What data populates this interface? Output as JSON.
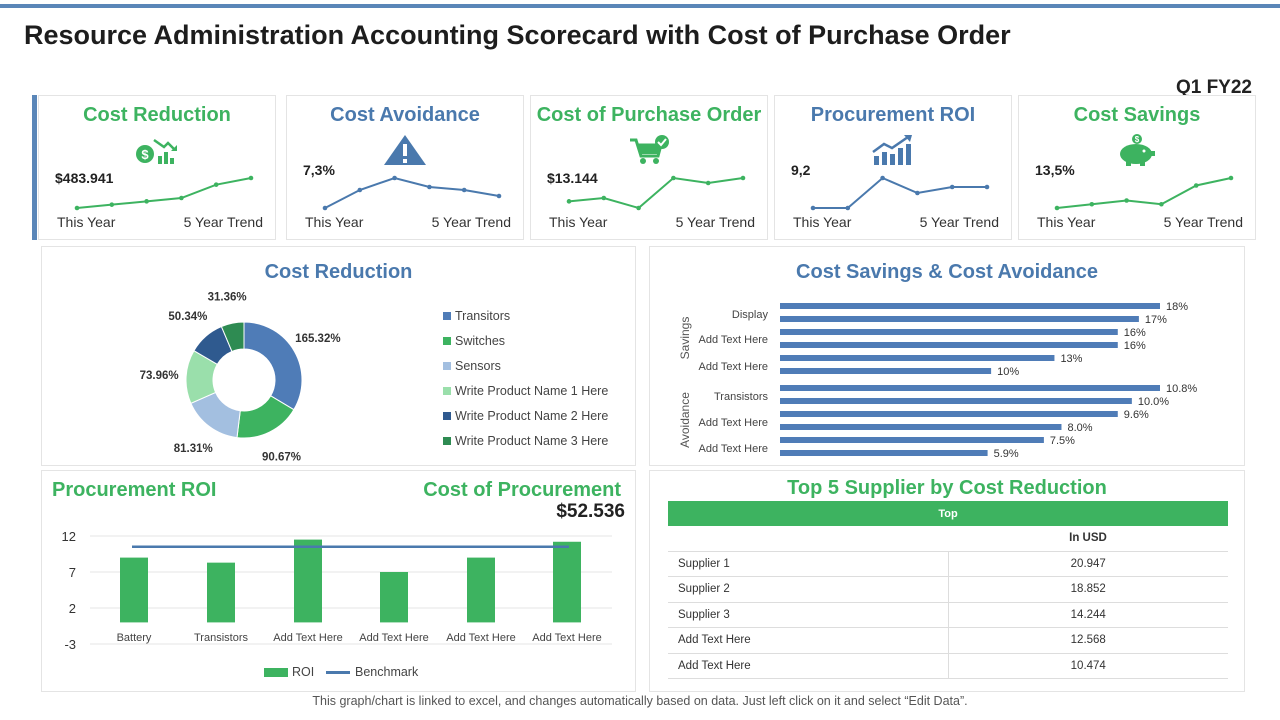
{
  "header": {
    "title": "Resource Administration Accounting Scorecard with Cost of Purchase Order",
    "period": "Q1 FY22"
  },
  "kpis": [
    {
      "title": "Cost Reduction",
      "value": "$483.941",
      "left_label": "This Year",
      "right_label": "5 Year Trend",
      "icon": "money-down-icon",
      "trend": [
        1,
        2,
        3,
        4,
        8,
        10
      ]
    },
    {
      "title": "Cost Avoidance",
      "value": "7,3%",
      "left_label": "This Year",
      "right_label": "5 Year Trend",
      "icon": "warning-triangle-icon",
      "trend": [
        3,
        6,
        8,
        6.5,
        6,
        5
      ]
    },
    {
      "title": "Cost of Purchase Order",
      "value": "$13.144",
      "left_label": "This Year",
      "right_label": "5 Year Trend",
      "icon": "shopping-cart-check-icon",
      "trend": [
        3,
        4,
        1,
        10,
        8.5,
        10
      ]
    },
    {
      "title": "Procurement ROI",
      "value": "9,2",
      "left_label": "This Year",
      "right_label": "5 Year Trend",
      "icon": "growth-chart-icon",
      "trend": [
        3,
        3,
        8,
        5.5,
        6.5,
        6.5
      ]
    },
    {
      "title": "Cost Savings",
      "value": "13,5%",
      "left_label": "This Year",
      "right_label": "5 Year Trend",
      "icon": "piggy-bank-icon",
      "trend": [
        2,
        3,
        4,
        3,
        8,
        10
      ]
    }
  ],
  "colors": {
    "green": "#3db360",
    "blue": "#4a79ad",
    "bar_blue": "#4f7cb7"
  },
  "cost_reduction": {
    "title": "Cost Reduction"
  },
  "savings_avoidance": {
    "title": "Cost Savings & Cost Avoidance"
  },
  "procurement": {
    "roi_title": "Procurement ROI",
    "cost_title": "Cost of Procurement",
    "cost_value": "$52.536"
  },
  "suppliers": {
    "title": "Top 5 Supplier by Cost Reduction",
    "header_top": "Top",
    "header_unit": "In USD",
    "rows": [
      {
        "name": "Supplier 1",
        "value": "20.947"
      },
      {
        "name": "Supplier 2",
        "value": "18.852"
      },
      {
        "name": "Supplier 3",
        "value": "14.244"
      },
      {
        "name": "Add Text Here",
        "value": "12.568"
      },
      {
        "name": "Add Text Here",
        "value": "10.474"
      }
    ]
  },
  "footnote": "This graph/chart is linked to excel, and changes automatically based on data. Just left click on it and select “Edit Data”.",
  "chart_data": [
    {
      "type": "pie",
      "title": "Cost Reduction",
      "categories": [
        "Transitors",
        "Switches",
        "Sensors",
        "Write Product Name 1 Here",
        "Write Product Name 2 Here",
        "Write Product Name 3 Here"
      ],
      "values": [
        165.32,
        90.67,
        81.31,
        73.96,
        50.34,
        31.36
      ],
      "labels": [
        "165.32%",
        "90.67%",
        "81.31%",
        "73.96%",
        "50.34%",
        "31.36%"
      ],
      "colors": [
        "#4f7cb7",
        "#3db360",
        "#a3bfe0",
        "#9adfab",
        "#2f5a8f",
        "#2e8b52"
      ],
      "legend": "right"
    },
    {
      "type": "bar",
      "orientation": "horizontal",
      "title": "Cost Savings & Cost Avoidance",
      "groups": [
        {
          "name": "Savings",
          "values": [
            18,
            17,
            16,
            16,
            13,
            10
          ],
          "labels": [
            "18%",
            "17%",
            "16%",
            "16%",
            "13%",
            "10%"
          ]
        },
        {
          "name": "Avoidance",
          "values": [
            10.8,
            10.0,
            9.6,
            8.0,
            7.5,
            5.9
          ],
          "labels": [
            "10.8%",
            "10.0%",
            "9.6%",
            "8.0%",
            "7.5%",
            "5.9%"
          ]
        }
      ],
      "category_labels": [
        "Display",
        "Add Text Here",
        "Add Text Here",
        "Transistors",
        "Add Text Here",
        "Add Text Here"
      ]
    },
    {
      "type": "bar",
      "title": "Procurement ROI",
      "categories": [
        "Battery",
        "Transistors",
        "Add Text Here",
        "Add Text Here",
        "Add Text Here",
        "Add Text Here"
      ],
      "series": [
        {
          "name": "ROI",
          "type": "bar",
          "values": [
            9,
            8.3,
            11.5,
            7,
            9,
            11.2
          ]
        },
        {
          "name": "Benchmark",
          "type": "line",
          "values": [
            10.5,
            10.5,
            10.5,
            10.5,
            10.5,
            10.5
          ]
        }
      ],
      "yticks": [
        12,
        7,
        2,
        -3
      ],
      "ylim": [
        -3,
        12
      ],
      "legend": "bottom"
    }
  ]
}
